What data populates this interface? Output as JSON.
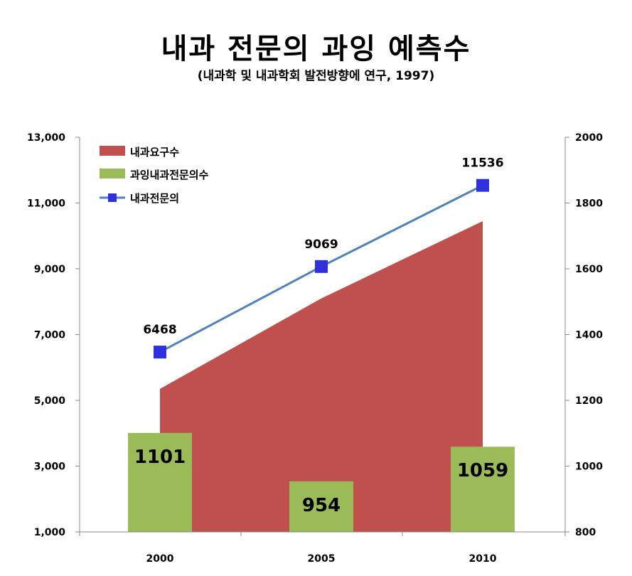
{
  "title": "내과 전문의 과잉 예측수",
  "subtitle": "(내과학 및 내과학회 발전방향에 연구, 1997)",
  "chart_data": {
    "type": "area",
    "categories": [
      "2000",
      "2005",
      "2010"
    ],
    "left_axis": {
      "ylim": [
        1000,
        13000
      ],
      "ticks": [
        "1,000",
        "3,000",
        "5,000",
        "7,000",
        "9,000",
        "11,000",
        "13,000"
      ],
      "tick_values": [
        1000,
        3000,
        5000,
        7000,
        9000,
        11000,
        13000
      ]
    },
    "right_axis": {
      "ylim": [
        800,
        2000
      ],
      "ticks": [
        "800",
        "1000",
        "1200",
        "1400",
        "1600",
        "1800",
        "2000"
      ],
      "tick_values": [
        800,
        1000,
        1200,
        1400,
        1600,
        1800,
        2000
      ]
    },
    "series": [
      {
        "name": "내과요구수",
        "kind": "area",
        "axis": "left",
        "color": "#c0504d",
        "values": [
          5350,
          8100,
          10450
        ]
      },
      {
        "name": "과잉내과전문의수",
        "kind": "bar",
        "axis": "right",
        "color": "#9bbb59",
        "values": [
          1101,
          954,
          1059
        ],
        "labels": [
          "1101",
          "954",
          "1059"
        ]
      },
      {
        "name": "내과전문의",
        "kind": "line",
        "axis": "left",
        "color": "#4f81bd",
        "marker_color": "#2f2fdc",
        "values": [
          6468,
          9069,
          11536
        ],
        "labels": [
          "6468",
          "9069",
          "11536"
        ]
      }
    ],
    "legend_position": "top-left",
    "grid": false
  }
}
